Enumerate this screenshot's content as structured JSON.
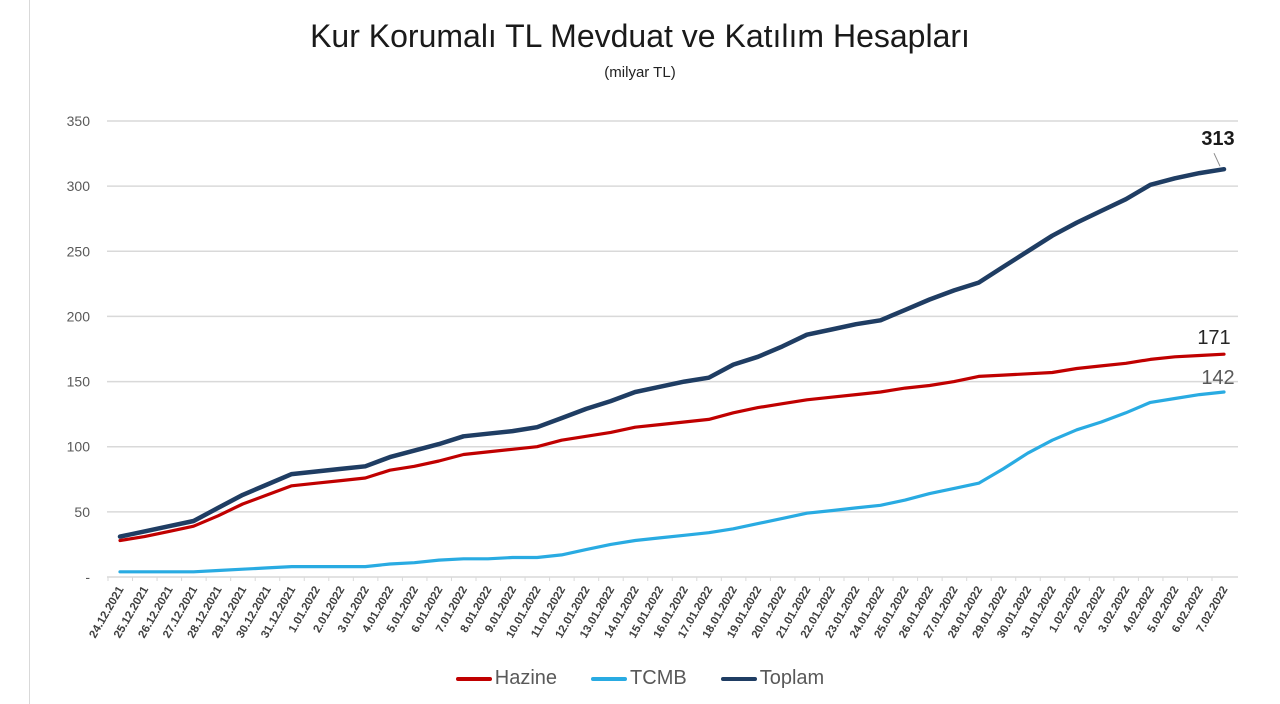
{
  "header": {
    "title": "Kur Korumalı TL Mevduat ve Katılım Hesapları",
    "subtitle": "(milyar TL)"
  },
  "legend": [
    {
      "name": "Hazine",
      "color": "#c00000"
    },
    {
      "name": "TCMB",
      "color": "#29abe2"
    },
    {
      "name": "Toplam",
      "color": "#1f3d63"
    }
  ],
  "end_labels": {
    "toplam": "313",
    "hazine": "171",
    "tcmb": "142"
  },
  "chart_data": {
    "type": "line",
    "title": "Kur Korumalı TL Mevduat ve Katılım Hesapları",
    "subtitle": "(milyar TL)",
    "xlabel": "",
    "ylabel": "milyar TL",
    "ylim": [
      0,
      350
    ],
    "yticks": [
      "-",
      "50",
      "100",
      "150",
      "200",
      "250",
      "300",
      "350"
    ],
    "grid": true,
    "legend_position": "bottom",
    "categories": [
      "24.12.2021",
      "25.12.2021",
      "26.12.2021",
      "27.12.2021",
      "28.12.2021",
      "29.12.2021",
      "30.12.2021",
      "31.12.2021",
      "1.01.2022",
      "2.01.2022",
      "3.01.2022",
      "4.01.2022",
      "5.01.2022",
      "6.01.2022",
      "7.01.2022",
      "8.01.2022",
      "9.01.2022",
      "10.01.2022",
      "11.01.2022",
      "12.01.2022",
      "13.01.2022",
      "14.01.2022",
      "15.01.2022",
      "16.01.2022",
      "17.01.2022",
      "18.01.2022",
      "19.01.2022",
      "20.01.2022",
      "21.01.2022",
      "22.01.2022",
      "23.01.2022",
      "24.01.2022",
      "25.01.2022",
      "26.01.2022",
      "27.01.2022",
      "28.01.2022",
      "29.01.2022",
      "30.01.2022",
      "31.01.2022",
      "1.02.2022",
      "2.02.2022",
      "3.02.2022",
      "4.02.2022",
      "5.02.2022",
      "6.02.2022",
      "7.02.2022"
    ],
    "series": [
      {
        "name": "Hazine",
        "color": "#c00000",
        "values": [
          28,
          31,
          35,
          39,
          47,
          56,
          63,
          70,
          72,
          74,
          76,
          82,
          85,
          89,
          94,
          96,
          98,
          100,
          105,
          108,
          111,
          115,
          117,
          119,
          121,
          126,
          130,
          133,
          136,
          138,
          140,
          142,
          145,
          147,
          150,
          154,
          155,
          156,
          157,
          160,
          162,
          164,
          167,
          169,
          170,
          171
        ]
      },
      {
        "name": "TCMB",
        "color": "#29abe2",
        "values": [
          4,
          4,
          4,
          4,
          5,
          6,
          7,
          8,
          8,
          8,
          8,
          10,
          11,
          13,
          14,
          14,
          15,
          15,
          17,
          21,
          25,
          28,
          30,
          32,
          34,
          37,
          41,
          45,
          49,
          51,
          53,
          55,
          59,
          64,
          68,
          72,
          83,
          95,
          105,
          113,
          119,
          126,
          134,
          137,
          140,
          142
        ]
      },
      {
        "name": "Toplam",
        "color": "#1f3d63",
        "values": [
          31,
          35,
          39,
          43,
          53,
          63,
          71,
          79,
          81,
          83,
          85,
          92,
          97,
          102,
          108,
          110,
          112,
          115,
          122,
          129,
          135,
          142,
          146,
          150,
          153,
          163,
          169,
          177,
          186,
          190,
          194,
          197,
          205,
          213,
          220,
          226,
          238,
          250,
          262,
          272,
          281,
          290,
          301,
          306,
          310,
          313
        ]
      }
    ],
    "annotations": [
      {
        "series": "Toplam",
        "text": "313",
        "bold": true
      },
      {
        "series": "Hazine",
        "text": "171"
      },
      {
        "series": "TCMB",
        "text": "142"
      }
    ]
  }
}
